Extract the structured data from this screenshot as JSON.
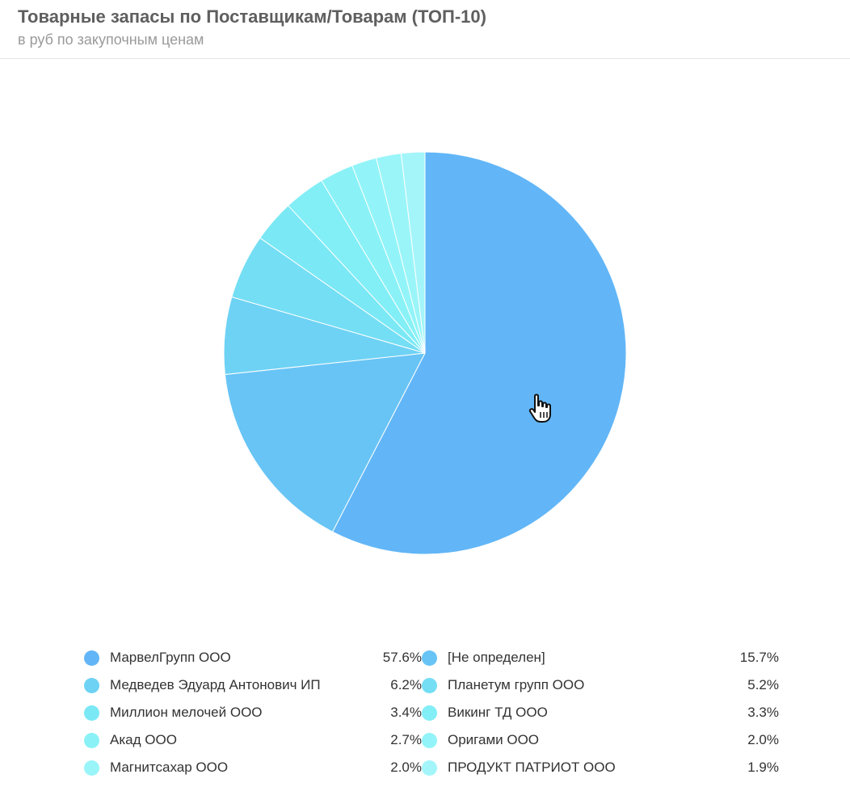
{
  "header": {
    "title": "Товарные запасы по Поставщикам/Товарам (ТОП-10)",
    "subtitle": "в руб по закупочным ценам"
  },
  "chart_data": {
    "type": "pie",
    "title": "Товарные запасы по Поставщикам/Товарам (ТОП-10)",
    "subtitle": "в руб по закупочным ценам",
    "legend_position": "bottom",
    "slices": [
      {
        "label": "МарвелГрупп ООО",
        "value": 57.6,
        "display": "57.6%",
        "color": "#62b6f7"
      },
      {
        "label": "[Не определен]",
        "value": 15.7,
        "display": "15.7%",
        "color": "#68c4f5"
      },
      {
        "label": "Медведев Эдуард Антонович ИП",
        "value": 6.2,
        "display": "6.2%",
        "color": "#6ed2f4"
      },
      {
        "label": "Планетум групп ООО",
        "value": 5.2,
        "display": "5.2%",
        "color": "#74def4"
      },
      {
        "label": "Миллион мелочей ООО",
        "value": 3.4,
        "display": "3.4%",
        "color": "#7ae8f5"
      },
      {
        "label": "Викинг ТД ООО",
        "value": 3.3,
        "display": "3.3%",
        "color": "#82eef6"
      },
      {
        "label": "Акад ООО",
        "value": 2.7,
        "display": "2.7%",
        "color": "#8af2f7"
      },
      {
        "label": "Оригами ООО",
        "value": 2.0,
        "display": "2.0%",
        "color": "#92f4f8"
      },
      {
        "label": "Магнитсахар ООО",
        "value": 2.0,
        "display": "2.0%",
        "color": "#9af5f9"
      },
      {
        "label": "ПРОДУКТ ПАТРИОТ ООО",
        "value": 1.9,
        "display": "1.9%",
        "color": "#a4f5fa"
      }
    ]
  }
}
